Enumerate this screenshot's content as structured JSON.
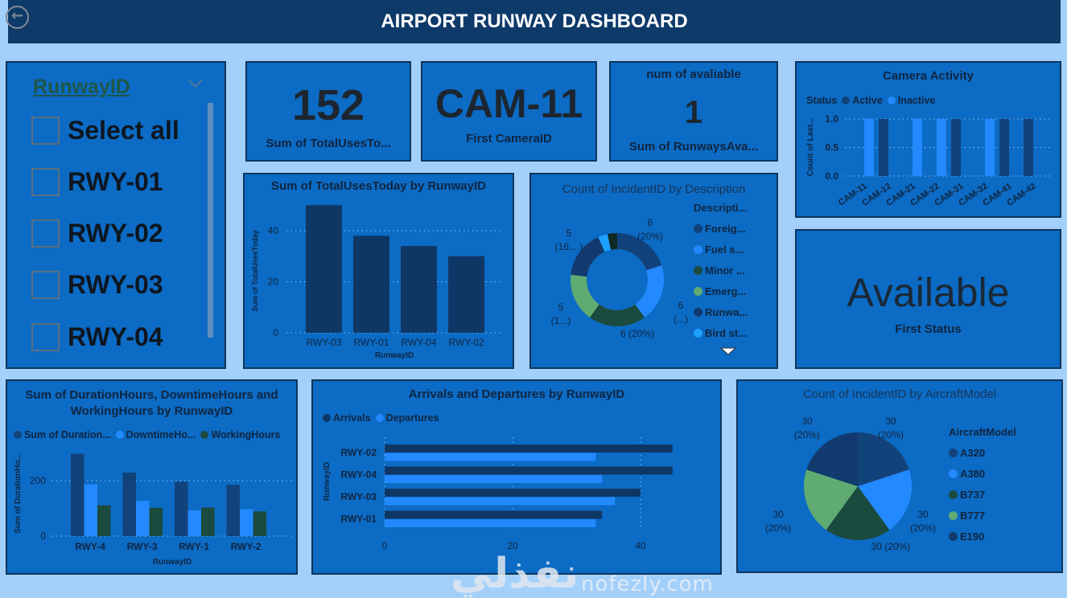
{
  "header": {
    "title": "AIRPORT RUNWAY DASHBOARD",
    "back_icon": "arrow-left-circle-icon"
  },
  "colors": {
    "background": "#a3d0fa",
    "header": "#0e3a6a",
    "panel": "#0c6bc4",
    "dark_navy": "#12427a",
    "bright_blue": "#2389ff",
    "dark_green": "#1b4a3e",
    "green": "#5fab72",
    "navy": "#123a6e",
    "sky": "#1ea0ff"
  },
  "slicer": {
    "title": "RunwayID",
    "items": [
      {
        "label": "Select all",
        "checked": false
      },
      {
        "label": "RWY-01",
        "checked": false
      },
      {
        "label": "RWY-02",
        "checked": false
      },
      {
        "label": "RWY-03",
        "checked": false
      },
      {
        "label": "RWY-04",
        "checked": false
      }
    ]
  },
  "kpis": [
    {
      "value": "152",
      "label": "Sum of TotalUsesTo..."
    },
    {
      "value": "CAM-11",
      "label": "First CameraID"
    },
    {
      "title": "num of avaliable",
      "value": "1",
      "label": "Sum of RunwaysAva..."
    }
  ],
  "status_card": {
    "value": "Available",
    "label": "First Status"
  },
  "chart_data": [
    {
      "id": "camera",
      "type": "bar",
      "title": "Camera Activity",
      "legend_title": "Status",
      "ylabel": "Count of Last...",
      "ylim": [
        0,
        1
      ],
      "yticks": [
        "0.0",
        "0.5",
        "1.0"
      ],
      "categories": [
        "CAM-11",
        "CAM-12",
        "CAM-21",
        "CAM-22",
        "CAM-31",
        "CAM-32",
        "CAM-41",
        "CAM-42"
      ],
      "series": [
        {
          "name": "Active",
          "color": "#12427a",
          "values": [
            0,
            1,
            0,
            0,
            1,
            0,
            1,
            1
          ]
        },
        {
          "name": "Inactive",
          "color": "#2389ff",
          "values": [
            1,
            0,
            1,
            1,
            0,
            1,
            0,
            0
          ]
        }
      ],
      "grid": true,
      "legend": "top-left"
    },
    {
      "id": "uses",
      "type": "bar",
      "title": "Sum of TotalUsesToday by RunwayID",
      "xlabel": "RunwayID",
      "ylabel": "Sum of TotalUsesToday",
      "ylim": [
        0,
        50
      ],
      "yticks": [
        "0",
        "20",
        "40"
      ],
      "categories": [
        "RWY-03",
        "RWY-01",
        "RWY-04",
        "RWY-02"
      ],
      "values": [
        50,
        38,
        34,
        30
      ],
      "color": "#0f3766",
      "grid": true
    },
    {
      "id": "description",
      "type": "pie",
      "donut": true,
      "title": "Count of IncidentID by Description",
      "legend_title": "Descripti...",
      "slices": [
        {
          "name": "Foreig...",
          "value": 6,
          "label": [
            "6",
            "(20%)"
          ],
          "color": "#12427a"
        },
        {
          "name": "Fuel s...",
          "value": 6,
          "label": [
            "6",
            "(...)"
          ],
          "color": "#2389ff"
        },
        {
          "name": "Minor ...",
          "value": 6,
          "label": [
            "6 (20%)"
          ],
          "color": "#1b4a3e"
        },
        {
          "name": "Emerg...",
          "value": 5,
          "label": [
            "5",
            "(1...)"
          ],
          "color": "#5fab72"
        },
        {
          "name": "Runwa...",
          "value": 5,
          "label": [
            "5",
            "(16....)"
          ],
          "color": "#123a6e"
        },
        {
          "name": "Bird st...",
          "value": 1,
          "color": "#1ea0ff"
        },
        {
          "value": 1,
          "color": "#0f2a24"
        }
      ],
      "legend": "right"
    },
    {
      "id": "duration",
      "type": "bar",
      "title": [
        "Sum of DurationHours, DowntimeHours and",
        "WorkingHours by RunwayID"
      ],
      "xlabel": "RunwayID",
      "ylabel": "Sum of DurationHo...",
      "ylim": [
        0,
        300
      ],
      "yticks": [
        "0",
        "200"
      ],
      "categories": [
        "RWY-4",
        "RWY-3",
        "RWY-1",
        "RWY-2"
      ],
      "series": [
        {
          "name": "Sum of Duration...",
          "color": "#12427a",
          "values": [
            297,
            229,
            196,
            185
          ]
        },
        {
          "name": "DowntimeHo...",
          "color": "#2389ff",
          "values": [
            187,
            127,
            93,
            97
          ]
        },
        {
          "name": "WorkingHours",
          "color": "#1b4a3e",
          "values": [
            111,
            102,
            103,
            89
          ]
        }
      ],
      "grid": true,
      "legend": "top-left"
    },
    {
      "id": "arrivals",
      "type": "bar",
      "orientation": "horizontal",
      "title": "Arrivals and Departures by RunwayID",
      "ylabel": "RunwayID",
      "xlim": [
        0,
        45
      ],
      "xticks": [
        "0",
        "20",
        "40"
      ],
      "categories": [
        "RWY-02",
        "RWY-04",
        "RWY-03",
        "RWY-01"
      ],
      "series": [
        {
          "name": "Arrivals",
          "color": "#0f3766",
          "values": [
            45,
            45,
            40,
            34
          ]
        },
        {
          "name": "Departures",
          "color": "#2389ff",
          "values": [
            33,
            34,
            36,
            33
          ]
        }
      ],
      "grid": true,
      "legend": "top-left"
    },
    {
      "id": "aircraft",
      "type": "pie",
      "title": "Count of IncidentID by AircraftModel",
      "legend_title": "AircraftModel",
      "slices": [
        {
          "name": "A320",
          "value": 30,
          "label": [
            "30",
            "(20%)"
          ],
          "color": "#12427a"
        },
        {
          "name": "A380",
          "value": 30,
          "label": [
            "30",
            "(20%)"
          ],
          "color": "#2389ff"
        },
        {
          "name": "B737",
          "value": 30,
          "label": [
            "30 (20%)"
          ],
          "color": "#1b4a3e"
        },
        {
          "name": "B777",
          "value": 30,
          "label": [
            "30",
            "(20%)"
          ],
          "color": "#5fab72"
        },
        {
          "name": "E190",
          "value": 30,
          "label": [
            "30",
            "(20%)"
          ],
          "color": "#123a6e"
        }
      ],
      "legend": "right"
    }
  ],
  "watermark": {
    "arabic": "نفذلي",
    "latin": "nofezly.com"
  }
}
